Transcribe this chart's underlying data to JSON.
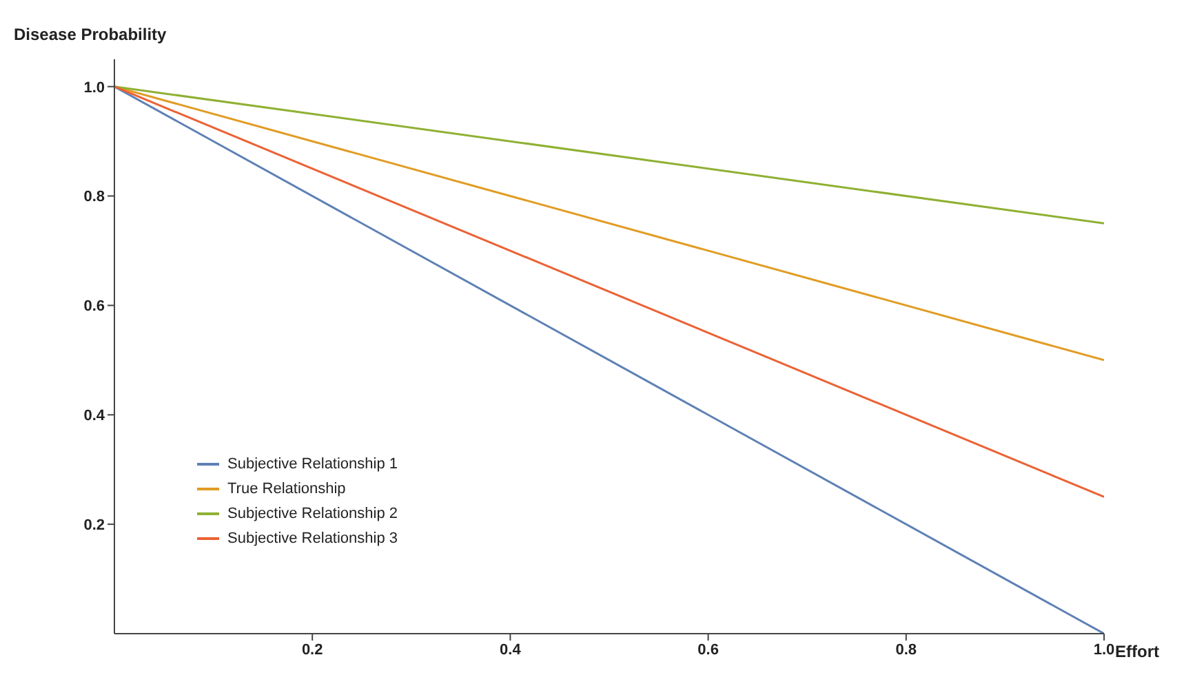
{
  "chart_data": {
    "type": "line",
    "xlabel": "Effort",
    "ylabel": "Disease Probability",
    "x": [
      0,
      1
    ],
    "series": [
      {
        "name": "Subjective Relationship 1",
        "color": "#5e81b5",
        "values": [
          1,
          0
        ]
      },
      {
        "name": "True Relationship",
        "color": "#e19c24",
        "values": [
          1,
          0.5
        ]
      },
      {
        "name": "Subjective Relationship 2",
        "color": "#8fb032",
        "values": [
          1,
          0.75
        ]
      },
      {
        "name": "Subjective Relationship 3",
        "color": "#eb6235",
        "values": [
          1,
          0.25
        ]
      }
    ],
    "xlim": [
      0,
      1.0
    ],
    "ylim": [
      0,
      1.05
    ],
    "xticks": [
      0.2,
      0.4,
      0.6,
      0.8,
      {
        "value": 1,
        "label": "1.0"
      }
    ],
    "yticks": [
      0.2,
      0.4,
      0.6,
      0.8,
      {
        "value": 1,
        "label": "1.0"
      }
    ],
    "grid": false,
    "legend": "bottom left",
    "marker": "none",
    "line_style": "solid"
  }
}
